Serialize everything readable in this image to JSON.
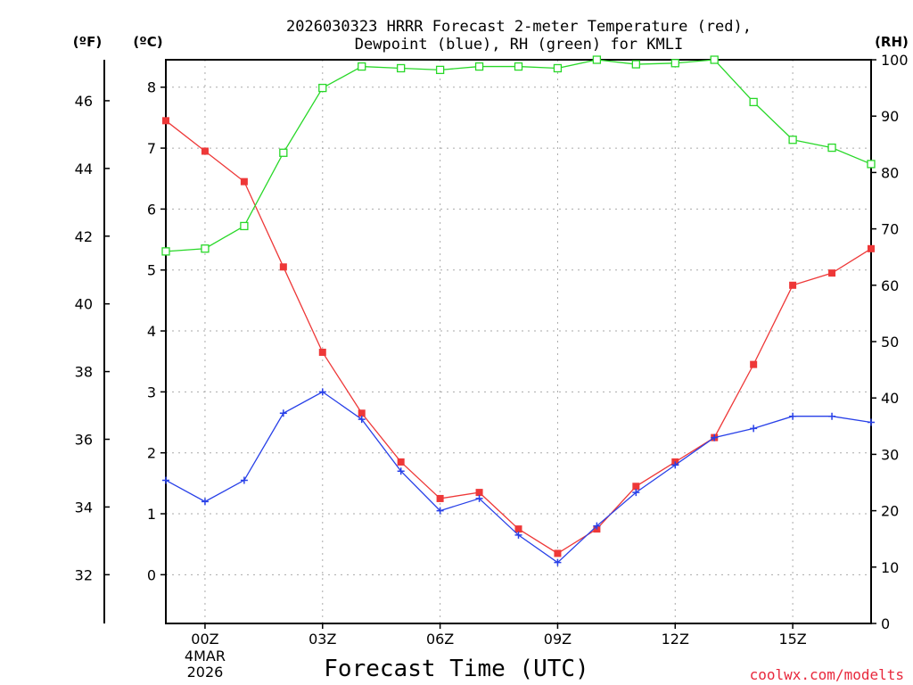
{
  "chart_data": {
    "type": "line",
    "title_line1": "2026030323 HRRR Forecast 2-meter Temperature (red),",
    "title_line2": "Dewpoint (blue), RH (green) for KMLI",
    "xlabel": "Forecast Time (UTC)",
    "credit": "coolwx.com/modelts",
    "unit_f": "(ºF)",
    "unit_c": "(ºC)",
    "unit_rh": "(RH)",
    "x_hours": [
      -1,
      0,
      1,
      2,
      3,
      4,
      5,
      6,
      7,
      8,
      9,
      10,
      11,
      12,
      13,
      14,
      15,
      16,
      17
    ],
    "xlim": [
      -1,
      17
    ],
    "x_ticks": [
      {
        "hour": 0,
        "label": "00Z"
      },
      {
        "hour": 3,
        "label": "03Z"
      },
      {
        "hour": 6,
        "label": "06Z"
      },
      {
        "hour": 9,
        "label": "09Z"
      },
      {
        "hour": 12,
        "label": "12Z"
      },
      {
        "hour": 15,
        "label": "15Z"
      }
    ],
    "date_label_line1": "4MAR",
    "date_label_line2": "2026",
    "ylim_c": [
      -0.8,
      8.45
    ],
    "y_ticks_c": [
      "0",
      "1",
      "2",
      "3",
      "4",
      "5",
      "6",
      "7",
      "8"
    ],
    "y_ticks_f": [
      "32",
      "34",
      "36",
      "38",
      "40",
      "42",
      "44",
      "46"
    ],
    "ylim_rh": [
      0,
      100
    ],
    "y_ticks_rh": [
      "0",
      "10",
      "20",
      "30",
      "40",
      "50",
      "60",
      "70",
      "80",
      "90",
      "100"
    ],
    "series": [
      {
        "name": "Temperature",
        "color": "#ee3838",
        "marker": "filled-square",
        "values": [
          7.45,
          6.95,
          6.45,
          5.05,
          3.65,
          2.65,
          1.85,
          1.25,
          1.35,
          0.75,
          0.35,
          0.75,
          1.45,
          1.85,
          2.25,
          3.45,
          4.75,
          4.95,
          5.35
        ]
      },
      {
        "name": "Dewpoint",
        "color": "#2840e8",
        "marker": "plus",
        "values": [
          1.55,
          1.2,
          1.55,
          2.65,
          3.0,
          2.55,
          1.7,
          1.05,
          1.25,
          0.65,
          0.2,
          0.8,
          1.35,
          1.8,
          2.25,
          2.4,
          2.6,
          2.6,
          2.5
        ]
      },
      {
        "name": "RH",
        "color": "#28d828",
        "marker": "open-square",
        "values": [
          66,
          66.5,
          70.5,
          83.5,
          95,
          98.8,
          98.5,
          98.2,
          98.8,
          98.8,
          98.5,
          100,
          99.2,
          99.4,
          100,
          92.5,
          85.8,
          84.4,
          81.5
        ]
      }
    ]
  }
}
